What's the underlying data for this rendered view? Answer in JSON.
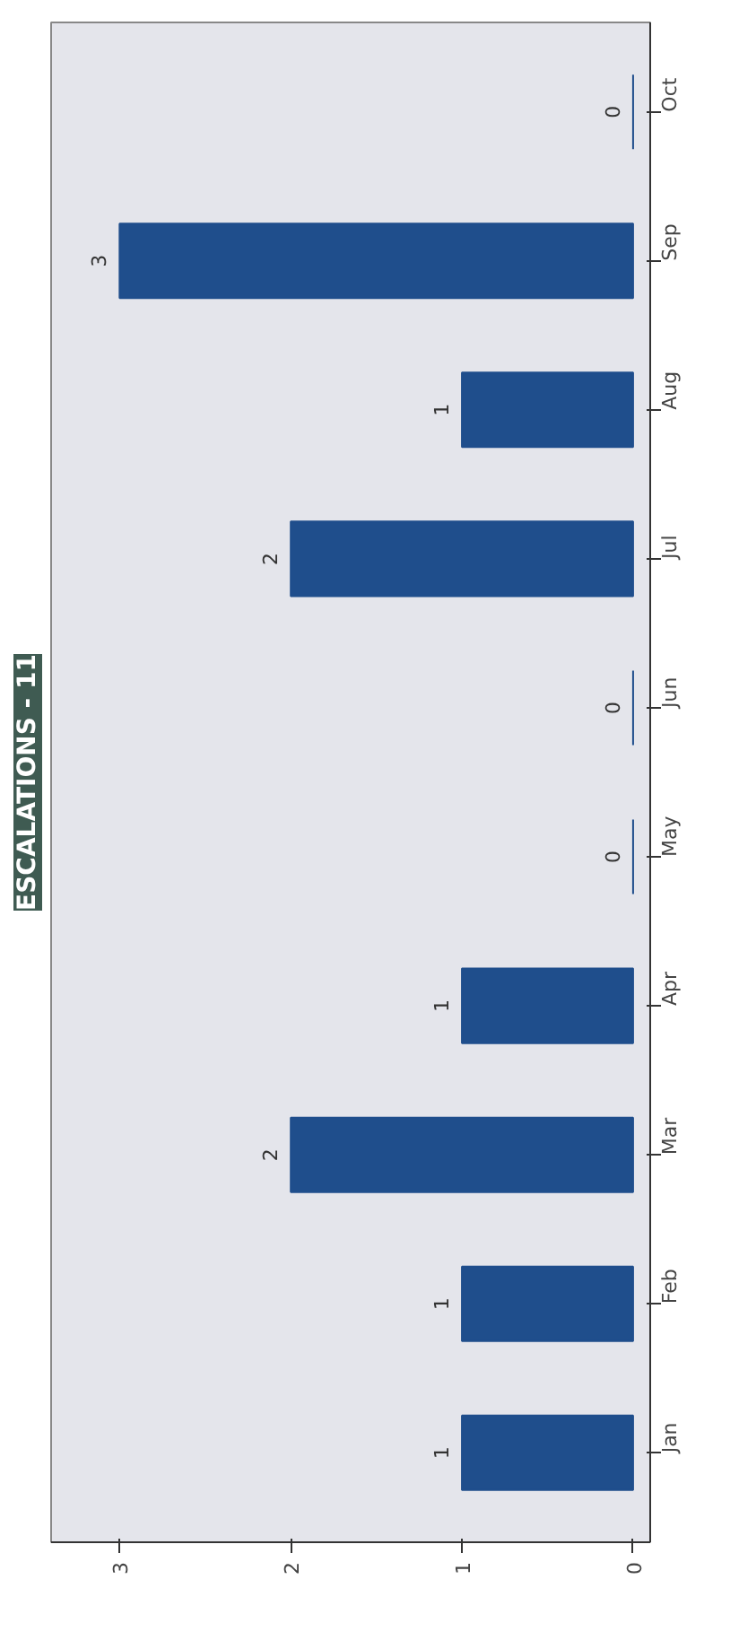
{
  "chart_data": {
    "type": "bar",
    "title": "ESCALATIONS - 11",
    "orientation": "horizontal",
    "categories": [
      "Oct",
      "Sep",
      "Aug",
      "Jul",
      "Jun",
      "May",
      "Apr",
      "Mar",
      "Feb",
      "Jan"
    ],
    "values": [
      0,
      3,
      1,
      2,
      0,
      0,
      1,
      2,
      1,
      1
    ],
    "color": "#1f4e8c",
    "xlim": [
      3.4,
      -0.1
    ],
    "xticks": [
      0,
      1,
      2,
      3
    ],
    "grid": false,
    "data_labels": true
  }
}
